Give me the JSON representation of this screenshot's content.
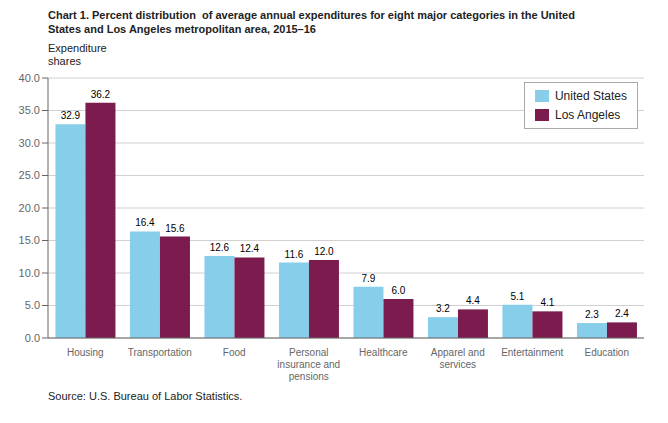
{
  "chart_data": {
    "type": "bar",
    "title": "Chart 1. Percent distribution  of average annual expenditures for eight major categories in the United\nStates and Los Angeles metropolitan area, 2015–16",
    "ylabel": "Expenditure\nshares",
    "source": "Source: U.S. Bureau of Labor Statistics.",
    "categories": [
      "Housing",
      "Transportation",
      "Food",
      "Personal\ninsurance and\npensions",
      "Healthcare",
      "Apparel and\nservices",
      "Entertainment",
      "Education"
    ],
    "series": [
      {
        "name": "United States",
        "color": "#87CEEB",
        "values": [
          32.9,
          16.4,
          12.6,
          11.6,
          7.9,
          3.2,
          5.1,
          2.3
        ],
        "value_labels": [
          "32.9",
          "16.4",
          "12.6",
          "11.6",
          "7.9",
          "3.2",
          "5.1",
          "2.3"
        ]
      },
      {
        "name": "Los Angeles",
        "color": "#7B1B4E",
        "values": [
          36.2,
          15.6,
          12.4,
          12.0,
          6.0,
          4.4,
          4.1,
          2.4
        ],
        "value_labels": [
          "36.2",
          "15.6",
          "12.4",
          "12.0",
          "6.0",
          "4.4",
          "4.1",
          "2.4"
        ]
      }
    ],
    "ylim": [
      0,
      40
    ],
    "yticks": [
      {
        "value": 0,
        "label": "0.0"
      },
      {
        "value": 5,
        "label": "5.0"
      },
      {
        "value": 10,
        "label": "10.0"
      },
      {
        "value": 15,
        "label": "15.0"
      },
      {
        "value": 20,
        "label": "20.0"
      },
      {
        "value": 25,
        "label": "25.0"
      },
      {
        "value": 30,
        "label": "30.0"
      },
      {
        "value": 35,
        "label": "35.0"
      },
      {
        "value": 40,
        "label": "40.0"
      }
    ],
    "grid": true,
    "legend": "upper right",
    "data_labels": true
  }
}
